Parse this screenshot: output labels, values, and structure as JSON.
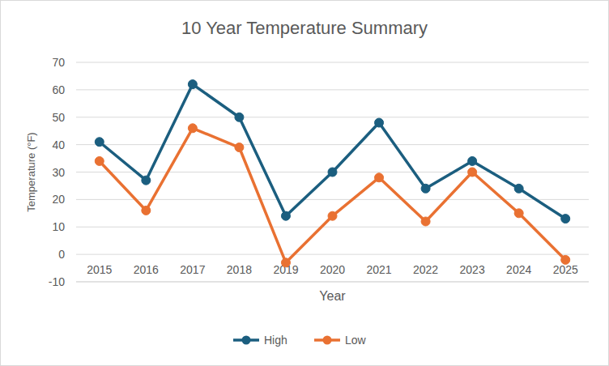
{
  "chart_data": {
    "type": "line",
    "title": "10 Year Temperature Summary",
    "x_label": "Year",
    "y_label": "Temperature (°F)",
    "categories": [
      "2015",
      "2016",
      "2017",
      "2018",
      "2019",
      "2020",
      "2021",
      "2022",
      "2023",
      "2024",
      "2025"
    ],
    "series": [
      {
        "name": "High",
        "color": "#1b5e7f",
        "marker": "circle",
        "line_style": "solid",
        "values": [
          41,
          27,
          62,
          50,
          14,
          30,
          48,
          24,
          34,
          24,
          13
        ]
      },
      {
        "name": "Low",
        "color": "#e97132",
        "marker": "circle",
        "line_style": "solid",
        "values": [
          34,
          16,
          46,
          39,
          -3,
          14,
          28,
          12,
          30,
          15,
          -2
        ]
      }
    ],
    "ylim": [
      -10,
      70
    ],
    "yticks": [
      -10,
      0,
      10,
      20,
      30,
      40,
      50,
      60,
      70
    ],
    "grid": true,
    "legend": "bottom"
  }
}
